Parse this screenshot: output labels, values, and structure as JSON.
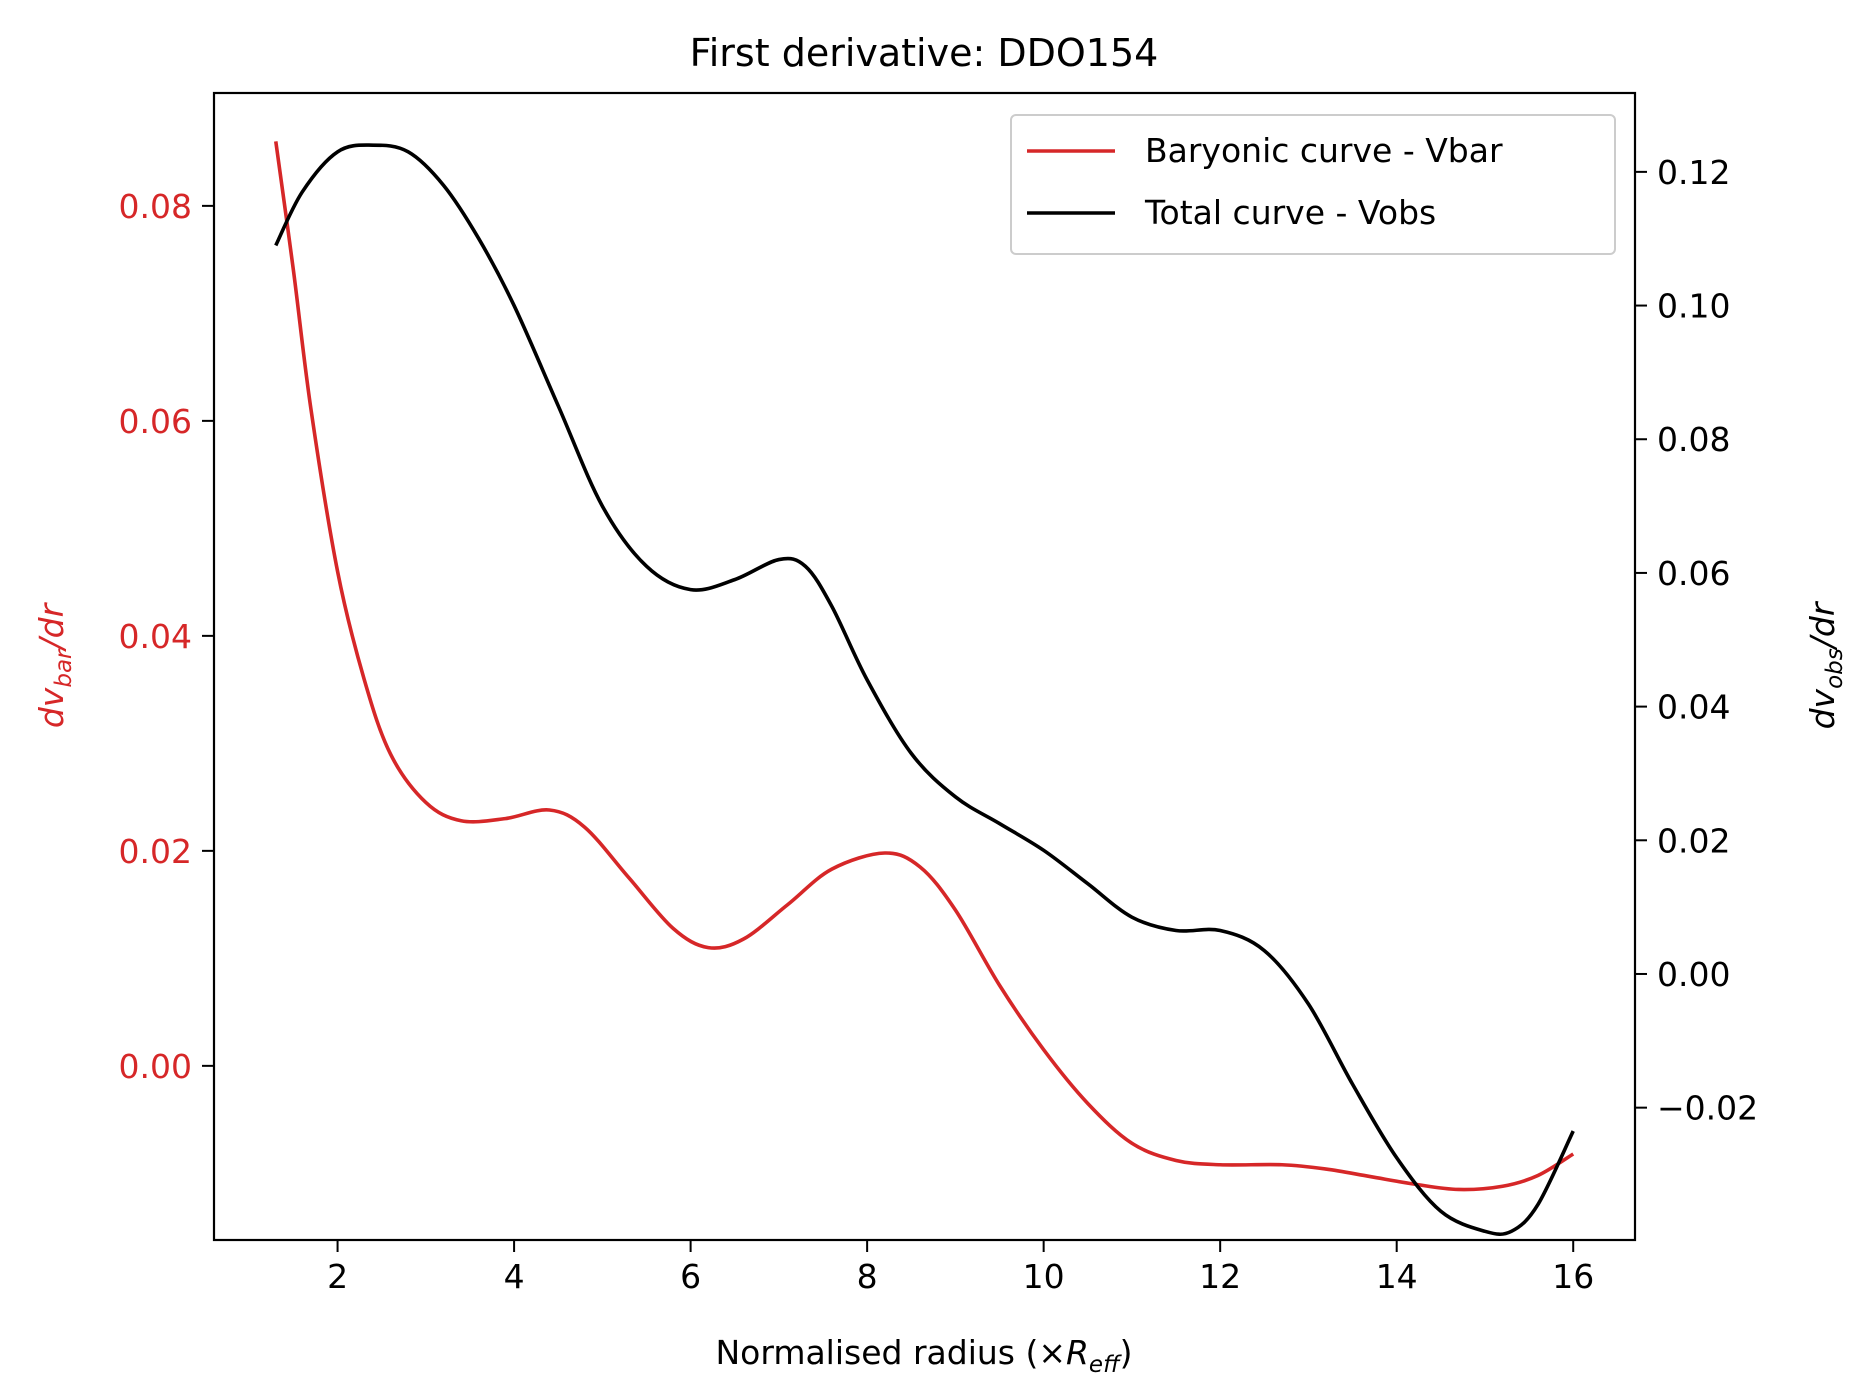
{
  "chart_data": {
    "type": "line",
    "title": "First derivative: DDO154",
    "xlabel": "Normalised radius (×R_eff)",
    "xlabel_parts": {
      "main": "Normalised radius (×",
      "italic": "R",
      "sub": "eff",
      "close": ")"
    },
    "ylabel_left": "dv_bar/dr",
    "ylabel_left_parts": {
      "italic": "dv",
      "sub": "bar",
      "tail": "/dr"
    },
    "ylabel_right": "dv_obs/dr",
    "ylabel_right_parts": {
      "italic": "dv",
      "sub": "obs",
      "tail": "/dr"
    },
    "xlim": [
      0.6,
      16.7
    ],
    "ylim_left": [
      -0.0162,
      0.0905
    ],
    "ylim_right": [
      -0.0398,
      0.1318
    ],
    "x_ticks": [
      2,
      4,
      6,
      8,
      10,
      12,
      14,
      16
    ],
    "y_ticks_left": [
      0.0,
      0.02,
      0.04,
      0.06,
      0.08
    ],
    "y_tick_labels_left": [
      "0.00",
      "0.02",
      "0.04",
      "0.06",
      "0.08"
    ],
    "y_ticks_right": [
      -0.02,
      0.0,
      0.02,
      0.04,
      0.06,
      0.08,
      0.1,
      0.12
    ],
    "y_tick_labels_right": [
      "−0.02",
      "0.00",
      "0.02",
      "0.04",
      "0.06",
      "0.08",
      "0.10",
      "0.12"
    ],
    "grid": false,
    "legend_position": "top-right",
    "series": [
      {
        "name": "Baryonic curve - Vbar",
        "axis": "left",
        "color": "#d62728",
        "x": [
          1.3,
          1.5,
          1.7,
          2.0,
          2.3,
          2.6,
          3.0,
          3.4,
          3.9,
          4.4,
          4.8,
          5.3,
          5.8,
          6.2,
          6.6,
          7.1,
          7.6,
          8.2,
          8.6,
          9.0,
          9.5,
          10.0,
          10.5,
          11.0,
          11.5,
          12.0,
          12.7,
          13.2,
          13.7,
          14.2,
          14.7,
          15.2,
          15.6,
          16.0
        ],
        "values": [
          0.086,
          0.074,
          0.061,
          0.046,
          0.036,
          0.029,
          0.0245,
          0.0228,
          0.023,
          0.0238,
          0.0222,
          0.0175,
          0.0128,
          0.011,
          0.0118,
          0.015,
          0.0183,
          0.0198,
          0.0185,
          0.0145,
          0.0075,
          0.0015,
          -0.0035,
          -0.0072,
          -0.0088,
          -0.0092,
          -0.0092,
          -0.0096,
          -0.0103,
          -0.011,
          -0.0115,
          -0.0112,
          -0.0102,
          -0.0082
        ]
      },
      {
        "name": "Total curve - Vobs",
        "axis": "right",
        "color": "#000000",
        "x": [
          1.3,
          1.6,
          2.0,
          2.4,
          2.8,
          3.2,
          3.6,
          4.0,
          4.5,
          5.0,
          5.5,
          6.0,
          6.5,
          7.0,
          7.3,
          7.6,
          8.0,
          8.5,
          9.0,
          9.5,
          10.0,
          10.5,
          11.0,
          11.5,
          12.0,
          12.5,
          13.0,
          13.5,
          14.0,
          14.5,
          15.0,
          15.3,
          15.6,
          16.0
        ],
        "values": [
          0.109,
          0.117,
          0.123,
          0.124,
          0.123,
          0.118,
          0.11,
          0.1,
          0.085,
          0.07,
          0.061,
          0.0575,
          0.059,
          0.062,
          0.061,
          0.055,
          0.044,
          0.033,
          0.0265,
          0.0225,
          0.0185,
          0.0135,
          0.0085,
          0.0065,
          0.0065,
          0.0035,
          -0.0045,
          -0.0165,
          -0.0275,
          -0.0355,
          -0.0385,
          -0.0385,
          -0.0345,
          -0.0235
        ]
      }
    ]
  }
}
